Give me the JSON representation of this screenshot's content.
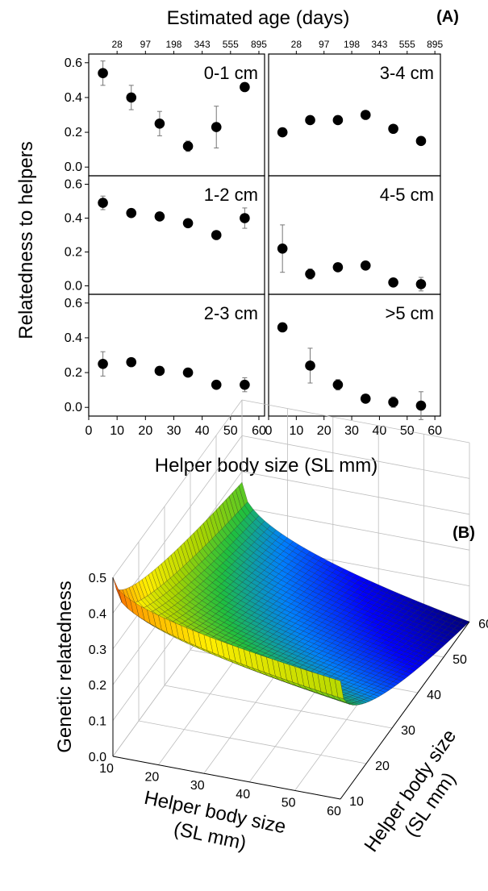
{
  "figure_labels": {
    "a": "(A)",
    "b": "(B)"
  },
  "chart_data": [
    {
      "type": "scatter",
      "panel": "A",
      "top_axis_title": "Estimated age (days)",
      "top_ticks": [
        {
          "x": 10,
          "label": "28"
        },
        {
          "x": 20,
          "label": "97"
        },
        {
          "x": 30,
          "label": "198"
        },
        {
          "x": 40,
          "label": "343"
        },
        {
          "x": 50,
          "label": "555"
        },
        {
          "x": 60,
          "label": "895"
        }
      ],
      "xlabel": "Helper body size (SL mm)",
      "ylabel": "Relatedness to helpers",
      "xlim": [
        0,
        62
      ],
      "ylim": [
        -0.05,
        0.65
      ],
      "x_ticks": [
        "0",
        "10",
        "20",
        "30",
        "40",
        "50",
        "60"
      ],
      "y_ticks": [
        "0.0",
        "0.2",
        "0.4",
        "0.6"
      ],
      "x": [
        5,
        15,
        25,
        35,
        45,
        55
      ],
      "panels": [
        {
          "label": "0-1 cm",
          "values": [
            0.54,
            0.4,
            0.25,
            0.12,
            0.23,
            0.46
          ],
          "err": [
            0.07,
            0.07,
            0.07,
            0.03,
            0.12,
            0.0
          ]
        },
        {
          "label": "3-4 cm",
          "values": [
            0.2,
            0.27,
            0.27,
            0.3,
            0.22,
            0.15
          ],
          "err": [
            0,
            0,
            0,
            0,
            0,
            0
          ]
        },
        {
          "label": "1-2 cm",
          "values": [
            0.49,
            0.43,
            0.41,
            0.37,
            0.3,
            0.4
          ],
          "err": [
            0.04,
            0.0,
            0.0,
            0.0,
            0.0,
            0.06
          ]
        },
        {
          "label": "4-5 cm",
          "values": [
            0.22,
            0.07,
            0.11,
            0.12,
            0.02,
            0.01
          ],
          "err": [
            0.14,
            0.03,
            0.0,
            0.0,
            0.0,
            0.04
          ]
        },
        {
          "label": "2-3 cm",
          "values": [
            0.25,
            0.26,
            0.21,
            0.2,
            0.13,
            0.13
          ],
          "err": [
            0.07,
            0.0,
            0.0,
            0.0,
            0.0,
            0.04
          ]
        },
        {
          "label": ">5 cm",
          "values": [
            0.46,
            0.24,
            0.13,
            0.05,
            0.03,
            0.01
          ],
          "err": [
            0.0,
            0.1,
            0.03,
            0.0,
            0.03,
            0.08
          ]
        }
      ]
    },
    {
      "type": "surface",
      "panel": "B",
      "xlabel_lines": [
        "Helper body size",
        "(SL mm)"
      ],
      "ylabel_lines": [
        "Helper body size",
        "(SL mm)"
      ],
      "zlabel": "Genetic relatedness",
      "x_ticks": [
        "10",
        "20",
        "30",
        "40",
        "50",
        "60"
      ],
      "y_ticks": [
        "10",
        "20",
        "30",
        "40",
        "50",
        "60"
      ],
      "z_ticks": [
        "0.0",
        "0.1",
        "0.2",
        "0.3",
        "0.4",
        "0.5"
      ],
      "xlim": [
        10,
        60
      ],
      "ylim": [
        10,
        60
      ],
      "zlim": [
        0,
        0.5
      ],
      "corner_values": [
        {
          "x": 10,
          "y": 10,
          "z": 0.5
        },
        {
          "x": 10,
          "y": 60,
          "z": 0.27
        },
        {
          "x": 60,
          "y": 10,
          "z": 0.33
        },
        {
          "x": 60,
          "y": 60,
          "z": 0.0
        }
      ],
      "colormap": [
        "#00007a",
        "#0000ff",
        "#0080ff",
        "#1fbf3f",
        "#a8d400",
        "#ffee00",
        "#ff8c00",
        "#d02000"
      ]
    }
  ]
}
